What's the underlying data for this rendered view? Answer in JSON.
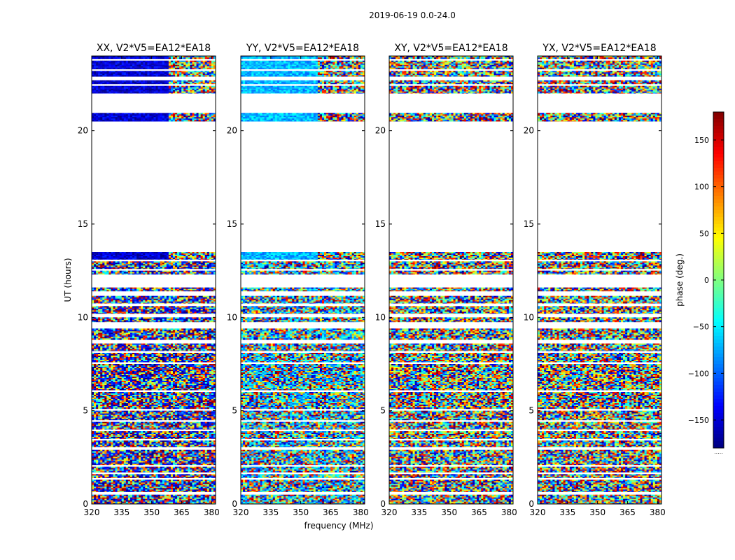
{
  "chart_data": {
    "type": "heatmap",
    "suptitle": "2019-06-19 0.0-24.0",
    "xlabel": "frequency (MHz)",
    "ylabel": "UT (hours)",
    "xlim": [
      320,
      382
    ],
    "ylim": [
      0,
      24
    ],
    "xticks": [
      320,
      335,
      350,
      365,
      380
    ],
    "yticks": [
      0,
      5,
      10,
      15,
      20
    ],
    "colorbar": {
      "label": "phase (deg.)",
      "range": [
        -180,
        180
      ],
      "ticks": [
        150,
        100,
        50,
        0,
        -50,
        -100,
        -150
      ],
      "tick_labels": [
        "150",
        "100",
        "50",
        "0",
        "−50",
        "−100",
        "−150"
      ],
      "colormap": "jet",
      "under_label": "....."
    },
    "panels": [
      {
        "title": "XX, V2*V5=EA12*EA18",
        "base_phase": -150,
        "coherence": 0.85
      },
      {
        "title": "YY, V2*V5=EA12*EA18",
        "base_phase": -70,
        "coherence": 0.8
      },
      {
        "title": "XY, V2*V5=EA12*EA18",
        "base_phase": 0,
        "coherence": 0.0
      },
      {
        "title": "YX, V2*V5=EA12*EA18",
        "base_phase": 0,
        "coherence": 0.0
      }
    ],
    "data_ut_ranges": [
      [
        0.0,
        0.5
      ],
      [
        0.65,
        1.3
      ],
      [
        1.4,
        1.6
      ],
      [
        1.7,
        2.0
      ],
      [
        2.1,
        2.9
      ],
      [
        3.05,
        3.4
      ],
      [
        3.5,
        3.9
      ],
      [
        4.0,
        4.4
      ],
      [
        4.5,
        5.0
      ],
      [
        5.1,
        6.0
      ],
      [
        6.1,
        7.5
      ],
      [
        7.6,
        8.1
      ],
      [
        8.2,
        8.6
      ],
      [
        8.8,
        9.4
      ],
      [
        9.75,
        10.0
      ],
      [
        10.2,
        10.6
      ],
      [
        10.75,
        11.15
      ],
      [
        11.4,
        11.6
      ],
      [
        12.3,
        12.5
      ],
      [
        12.6,
        13.0
      ],
      [
        13.1,
        13.5
      ],
      [
        20.5,
        20.95
      ],
      [
        22.0,
        22.4
      ],
      [
        22.5,
        22.7
      ],
      [
        22.9,
        23.2
      ],
      [
        23.3,
        23.75
      ],
      [
        23.85,
        24.0
      ]
    ]
  }
}
